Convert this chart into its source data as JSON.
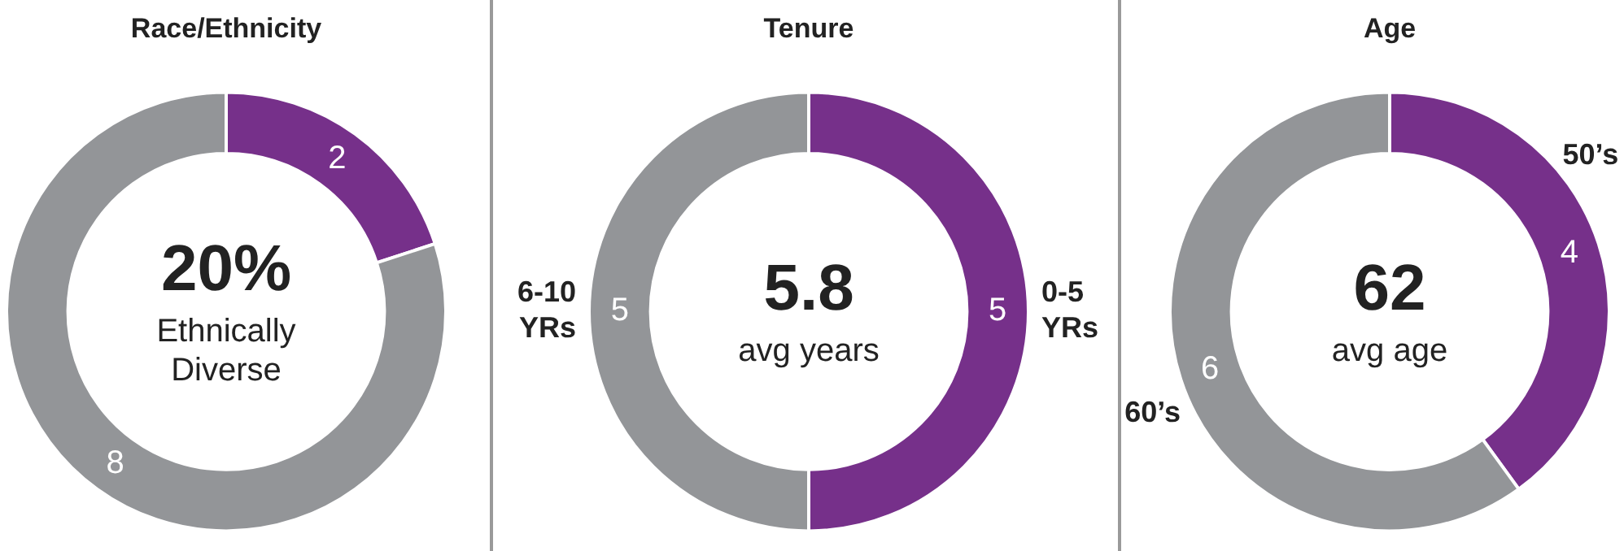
{
  "chart_data": [
    {
      "type": "donut",
      "title": "Race/Ethnicity",
      "categories": [
        null,
        null
      ],
      "values": [
        2,
        8
      ],
      "colors": [
        "#76308a",
        "#939598"
      ],
      "data_labels": true,
      "legend": false,
      "annotations": [
        "20%",
        "Ethnically Diverse"
      ]
    },
    {
      "type": "donut",
      "title": "Tenure",
      "categories": [
        "0-5 YRs",
        "6-10 YRs"
      ],
      "values": [
        5,
        5
      ],
      "colors": [
        "#76308a",
        "#939598"
      ],
      "data_labels": true,
      "legend": false,
      "annotations": [
        "5.8",
        "avg years"
      ]
    },
    {
      "type": "donut",
      "title": "Age",
      "categories": [
        "50’s",
        "60’s"
      ],
      "values": [
        4,
        6
      ],
      "colors": [
        "#76308a",
        "#939598"
      ],
      "data_labels": true,
      "legend": false,
      "annotations": [
        "62",
        "avg age"
      ]
    }
  ]
}
